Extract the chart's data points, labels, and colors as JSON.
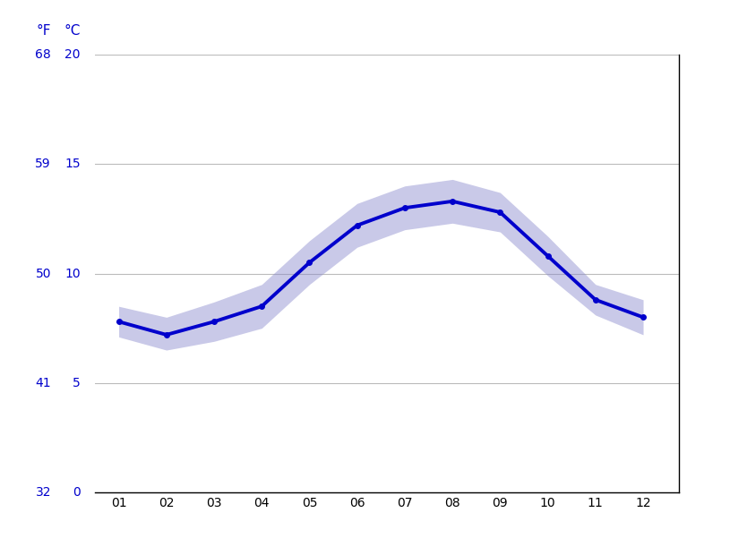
{
  "months": [
    1,
    2,
    3,
    4,
    5,
    6,
    7,
    8,
    9,
    10,
    11,
    12
  ],
  "month_labels": [
    "01",
    "02",
    "03",
    "04",
    "05",
    "06",
    "07",
    "08",
    "09",
    "10",
    "11",
    "12"
  ],
  "mean_c": [
    7.8,
    7.2,
    7.8,
    8.5,
    10.5,
    12.2,
    13.0,
    13.3,
    12.8,
    10.8,
    8.8,
    8.0
  ],
  "upper_c": [
    8.5,
    8.0,
    8.7,
    9.5,
    11.5,
    13.2,
    14.0,
    14.3,
    13.7,
    11.7,
    9.5,
    8.8
  ],
  "lower_c": [
    7.1,
    6.5,
    6.9,
    7.5,
    9.5,
    11.2,
    12.0,
    12.3,
    11.9,
    9.9,
    8.1,
    7.2
  ],
  "line_color": "#0000cc",
  "fill_color": "#8888cc",
  "axis_color": "#0000cc",
  "grid_color": "#bbbbbb",
  "background_color": "#ffffff",
  "ylim_c": [
    0,
    20
  ],
  "yticks_c": [
    0,
    5,
    10,
    15,
    20
  ],
  "yticks_f": [
    32,
    41,
    50,
    59,
    68
  ],
  "ylabel_left": "°F",
  "ylabel_right": "°C",
  "marker_size": 4,
  "line_width": 2.8,
  "fill_alpha": 0.45
}
